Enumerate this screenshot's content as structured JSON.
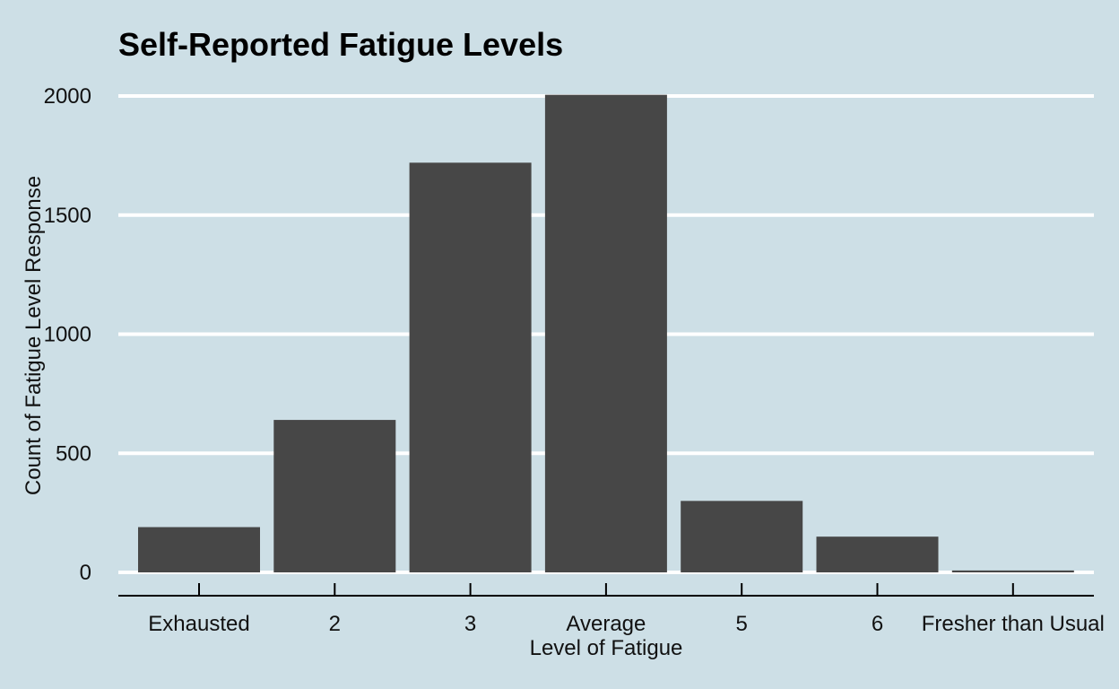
{
  "chart_data": {
    "type": "bar",
    "title": "Self-Reported Fatigue Levels",
    "xlabel": "Level of Fatigue",
    "ylabel": "Count of Fatigue Level Response",
    "categories": [
      "Exhausted",
      "2",
      "3",
      "Average",
      "5",
      "6",
      "Fresher than Usual"
    ],
    "values": [
      190,
      640,
      1720,
      2005,
      300,
      150,
      8
    ],
    "ylim": [
      0,
      2000
    ],
    "yticks": [
      0,
      500,
      1000,
      1500,
      2000
    ],
    "grid": "horizontal",
    "bar_color": "#474747",
    "background_color": "#cddfe6",
    "grid_color": "#ffffff"
  }
}
